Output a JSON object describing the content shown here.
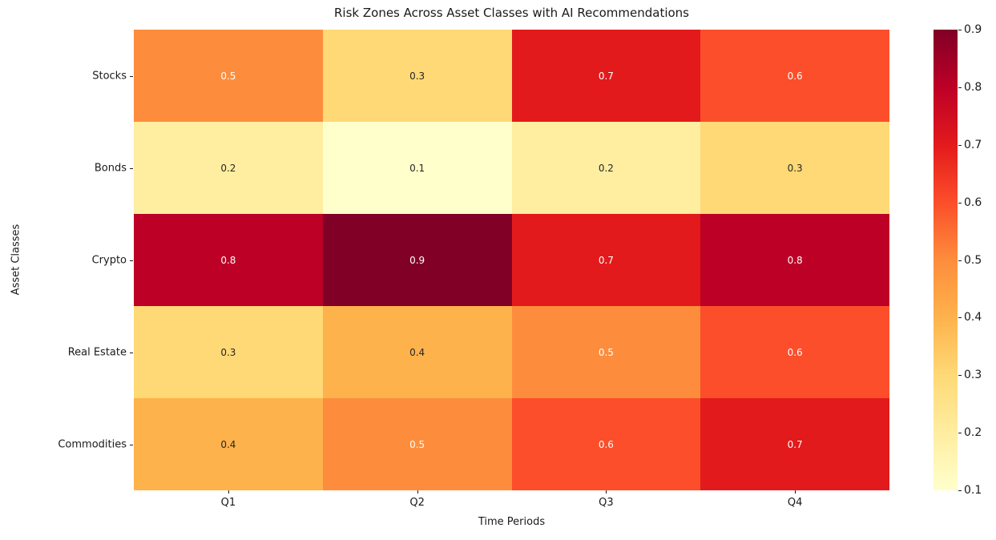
{
  "chart_data": {
    "type": "heatmap",
    "title": "Risk Zones Across Asset Classes with AI Recommendations",
    "xlabel": "Time Periods",
    "ylabel": "Asset Classes",
    "columns": [
      "Q1",
      "Q2",
      "Q3",
      "Q4"
    ],
    "rows": [
      "Stocks",
      "Bonds",
      "Crypto",
      "Real Estate",
      "Commodities"
    ],
    "values": [
      [
        0.5,
        0.3,
        0.7,
        0.6
      ],
      [
        0.2,
        0.1,
        0.2,
        0.3
      ],
      [
        0.8,
        0.9,
        0.7,
        0.8
      ],
      [
        0.3,
        0.4,
        0.5,
        0.6
      ],
      [
        0.4,
        0.5,
        0.6,
        0.7
      ]
    ],
    "colormap": "YlOrRd",
    "vmin": 0.1,
    "vmax": 0.9,
    "colorbar_ticks": [
      0.9,
      0.8,
      0.7,
      0.6,
      0.5,
      0.4,
      0.3,
      0.2,
      0.1
    ],
    "colorbar_position": "right",
    "grid": false,
    "value_colors": {
      "0.1": "#ffffcc",
      "0.2": "#ffeda0",
      "0.3": "#fed976",
      "0.4": "#feb24c",
      "0.5": "#fd8d3c",
      "0.6": "#fc4e2a",
      "0.7": "#e31a1c",
      "0.8": "#bd0026",
      "0.9": "#800026"
    },
    "gradient_stops": [
      "#ffffcc",
      "#ffeda0",
      "#fed976",
      "#feb24c",
      "#fd8d3c",
      "#fc4e2a",
      "#e31a1c",
      "#bd0026",
      "#800026"
    ],
    "annotation_text_light": "#ffffff",
    "annotation_text_dark": "#262626",
    "white_text_threshold": 0.5,
    "background_color": "#ffffff",
    "axis_text_color": "#1a1a1a"
  }
}
